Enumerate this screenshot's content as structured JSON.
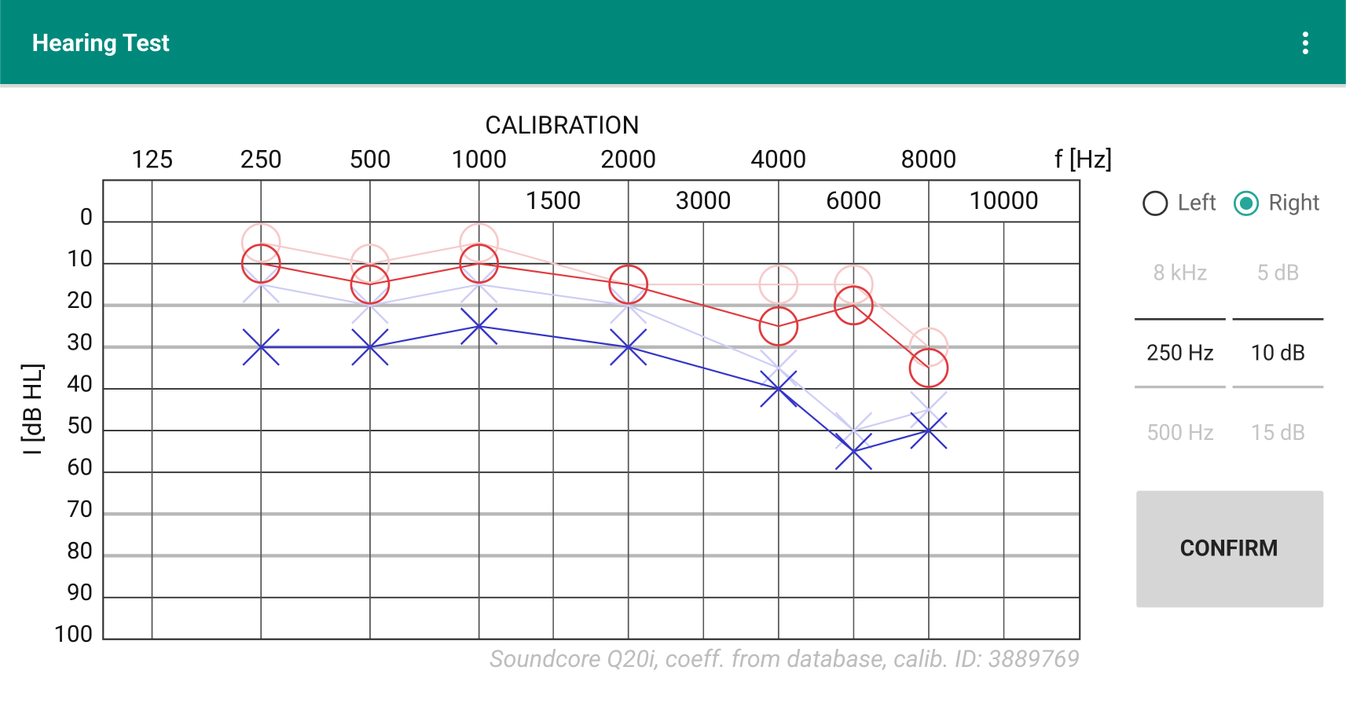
{
  "header": {
    "title": "Hearing Test"
  },
  "chart_data": {
    "type": "audiogram",
    "title": "CALIBRATION",
    "x_label": "f [Hz]",
    "y_label": "I [dB HL]",
    "note": "Soundcore Q20i, coeff. from database, calib. ID: 3889769",
    "x_scale": "log",
    "xticks": [
      125,
      250,
      500,
      1000,
      2000,
      4000,
      8000
    ],
    "xticks_minor": [
      1500,
      3000,
      6000,
      10000
    ],
    "ylim": [
      -10,
      100
    ],
    "yticks": [
      0,
      10,
      20,
      30,
      40,
      50,
      60,
      70,
      80,
      90,
      100
    ],
    "y_inverted": true,
    "grid": true,
    "x": [
      250,
      500,
      1000,
      2000,
      4000,
      6000,
      8000
    ],
    "series": [
      {
        "color": "#f6caca",
        "marker": "o",
        "values": [
          5,
          10,
          5,
          15,
          15,
          15,
          30
        ]
      },
      {
        "color": "#cdcdf6",
        "marker": "x",
        "values": [
          15,
          20,
          15,
          20,
          35,
          50,
          45
        ]
      },
      {
        "color": "#3535c8",
        "marker": "x",
        "values": [
          30,
          30,
          25,
          30,
          40,
          55,
          50
        ]
      },
      {
        "color": "#e03a3e",
        "marker": "o",
        "values": [
          10,
          15,
          10,
          15,
          25,
          20,
          35
        ]
      }
    ]
  },
  "panel": {
    "ear_options": [
      "Left",
      "Right"
    ],
    "selected_ear": "Right",
    "frequency_options": [
      "8 kHz",
      "250 Hz",
      "500 Hz"
    ],
    "level_options": [
      "5 dB",
      "10 dB",
      "15 dB"
    ],
    "button": "CONFIRM"
  }
}
